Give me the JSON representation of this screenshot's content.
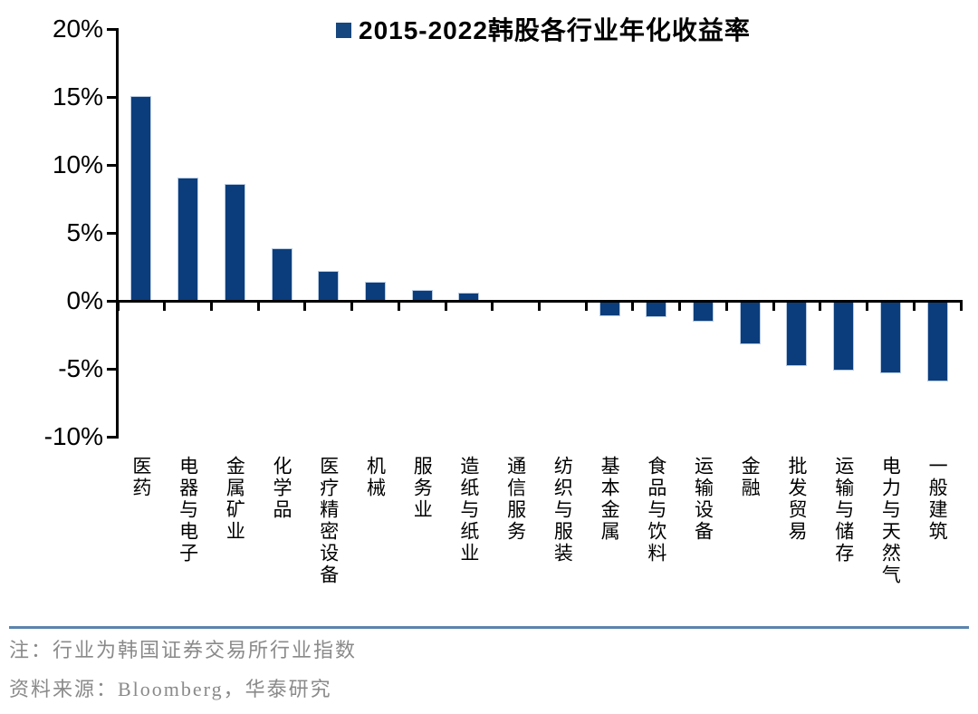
{
  "title": {
    "text": "2015-2022韩股各行业年化收益率"
  },
  "chart_data": {
    "type": "bar",
    "title": "2015-2022韩股各行业年化收益率",
    "categories": [
      "医药",
      "电器与电子",
      "金属矿业",
      "化学品",
      "医疗精密设备",
      "机械",
      "服务业",
      "造纸与纸业",
      "通信服务",
      "纺织与服装",
      "基本金属",
      "食品与饮料",
      "运输设备",
      "金融",
      "批发贸易",
      "运输与储存",
      "电力与天然气",
      "一般建筑"
    ],
    "values": [
      15.1,
      9.1,
      8.6,
      3.9,
      2.2,
      1.4,
      0.8,
      0.6,
      0.0,
      0.0,
      -1.1,
      -1.2,
      -1.5,
      -3.2,
      -4.8,
      -5.1,
      -5.3,
      -5.9
    ],
    "unit": "%",
    "y_ticks": [
      20,
      15,
      10,
      5,
      0,
      -5,
      -10
    ],
    "y_tick_labels": [
      "20%",
      "15%",
      "10%",
      "5%",
      "0%",
      "-5%",
      "-10%"
    ],
    "ylim": [
      -10,
      20
    ],
    "xlabel": "",
    "ylabel": "",
    "grid": false,
    "legend_position": "top-center",
    "bar_color": "#0b3d7c",
    "bar_edge_color": "#b9cbe2",
    "axis_color": "#000000"
  },
  "footer": {
    "note": "注：行业为韩国证券交易所行业指数",
    "source": "资料来源：Bloomberg，华泰研究"
  },
  "colors": {
    "legend_marker": "#17477f",
    "divider": "#5b84ad",
    "footer_text": "#8a8a8a"
  }
}
